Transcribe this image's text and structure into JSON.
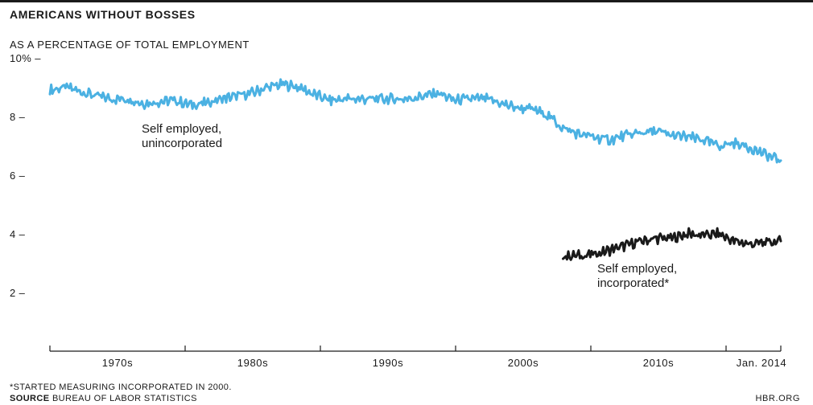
{
  "chart_data": {
    "type": "line",
    "title": "AMERICANS WITHOUT BOSSES",
    "subtitle": "AS A PERCENTAGE OF TOTAL EMPLOYMENT",
    "footnote": "*STARTED MEASURING INCORPORATED IN 2000.",
    "source_label": "SOURCE",
    "source_text": "BUREAU OF LABOR STATISTICS",
    "credit": "HBR.ORG",
    "y_ticks": [
      "10% –",
      "8 –",
      "6 –",
      "4 –",
      "2 –"
    ],
    "y_tick_values": [
      10,
      8,
      6,
      4,
      2
    ],
    "ylim": [
      0,
      10
    ],
    "x_tick_labels": [
      "1970s",
      "1980s",
      "1990s",
      "2000s",
      "2010s",
      "Jan. 2014"
    ],
    "xlim": [
      1967,
      2014
    ],
    "grid": false,
    "series": [
      {
        "name": "Self employed, unincorporated",
        "label_lines": [
          "Self employed,",
          "unincorporated"
        ],
        "color": "#4bb1e2",
        "x": [
          1967,
          1968,
          1969,
          1970,
          1971,
          1972,
          1973,
          1974,
          1975,
          1976,
          1977,
          1978,
          1979,
          1980,
          1981,
          1982,
          1983,
          1984,
          1985,
          1986,
          1987,
          1988,
          1989,
          1990,
          1991,
          1992,
          1993,
          1994,
          1995,
          1996,
          1997,
          1998,
          1999,
          2000,
          2001,
          2002,
          2003,
          2004,
          2005,
          2006,
          2007,
          2008,
          2009,
          2010,
          2011,
          2012,
          2013,
          2014
        ],
        "values": [
          8.9,
          9.0,
          8.85,
          8.7,
          8.6,
          8.6,
          8.45,
          8.5,
          8.55,
          8.4,
          8.45,
          8.6,
          8.7,
          8.8,
          9.0,
          9.1,
          9.0,
          8.75,
          8.55,
          8.6,
          8.6,
          8.6,
          8.6,
          8.6,
          8.7,
          8.8,
          8.55,
          8.6,
          8.6,
          8.45,
          8.3,
          8.25,
          8.05,
          7.6,
          7.4,
          7.3,
          7.2,
          7.35,
          7.45,
          7.5,
          7.35,
          7.3,
          7.2,
          7.0,
          7.1,
          6.95,
          6.7,
          6.5
        ]
      },
      {
        "name": "Self employed, incorporated*",
        "label_lines": [
          "Self employed,",
          "incorporated*"
        ],
        "color": "#1a1a1a",
        "x": [
          2000,
          2001,
          2002,
          2003,
          2004,
          2005,
          2006,
          2007,
          2008,
          2009,
          2010,
          2011,
          2012,
          2013,
          2014
        ],
        "values": [
          3.25,
          3.25,
          3.3,
          3.45,
          3.6,
          3.75,
          3.85,
          3.85,
          4.0,
          3.95,
          4.0,
          3.75,
          3.65,
          3.7,
          3.75
        ]
      }
    ]
  }
}
